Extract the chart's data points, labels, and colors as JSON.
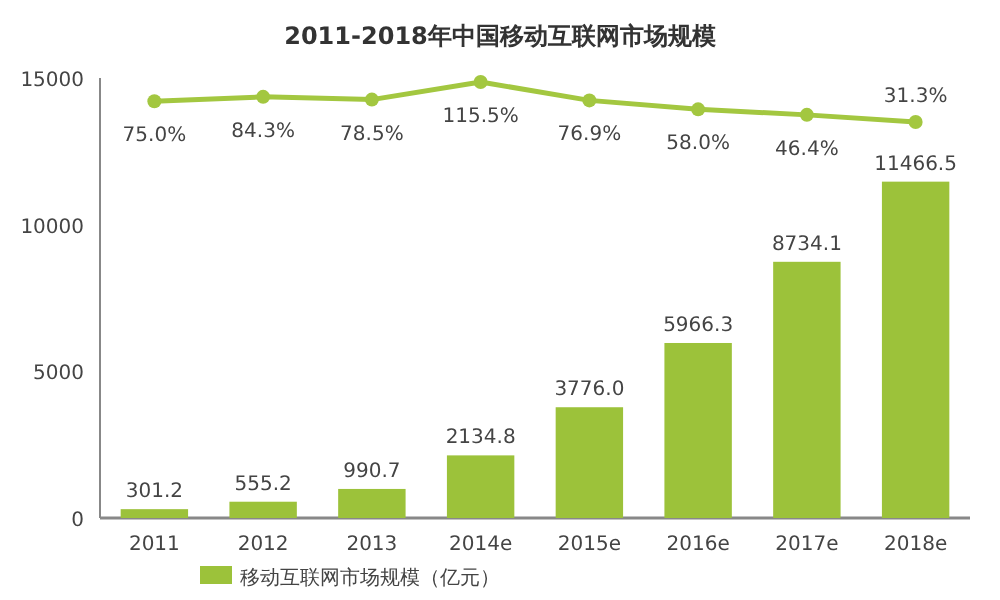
{
  "chart_data": {
    "type": "bar",
    "title": "2011-2018年中国移动互联网市场规模",
    "categories": [
      "2011",
      "2012",
      "2013",
      "2014e",
      "2015e",
      "2016e",
      "2017e",
      "2018e"
    ],
    "series": [
      {
        "name": "移动互联网市场规模（亿元）",
        "color": "#9cc23a",
        "values": [
          301.2,
          555.2,
          990.7,
          2134.8,
          3776.0,
          5966.3,
          8734.1,
          11466.5
        ],
        "value_labels": [
          "301.2",
          "555.2",
          "990.7",
          "2134.8",
          "3776.0",
          "5966.3",
          "8734.1",
          "11466.5"
        ]
      },
      {
        "type": "line",
        "axis": "y2",
        "color": "#a3c740",
        "marker": "circle",
        "values": [
          75.0,
          84.3,
          78.5,
          115.5,
          76.9,
          58.0,
          46.4,
          31.3
        ],
        "value_labels": [
          "75.0%",
          "84.3%",
          "78.5%",
          "115.5%",
          "76.9%",
          "58.0%",
          "46.4%",
          "31.3%"
        ]
      }
    ],
    "ylim": [
      0,
      15000
    ],
    "yticks": [
      0,
      5000,
      10000,
      15000
    ],
    "y2lim": [
      -802,
      124
    ],
    "tick_labels": "xy",
    "grid": false,
    "legend": "bottom"
  }
}
